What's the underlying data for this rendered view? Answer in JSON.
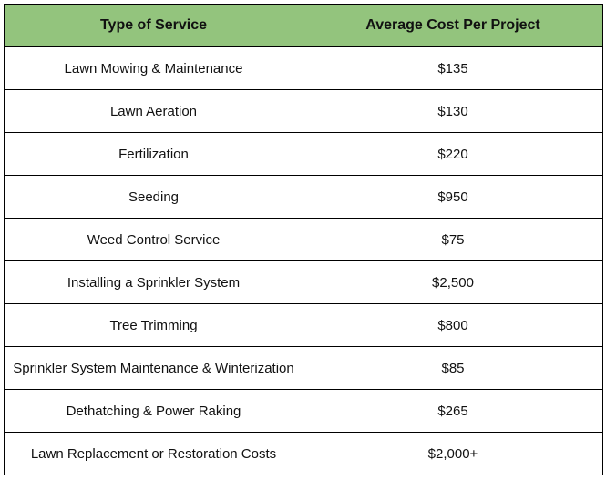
{
  "table": {
    "headers": [
      "Type of Service",
      "Average Cost Per Project"
    ],
    "header_color": "#93c47d",
    "rows": [
      [
        "Lawn Mowing & Maintenance",
        "$135"
      ],
      [
        "Lawn Aeration",
        "$130"
      ],
      [
        "Fertilization",
        "$220"
      ],
      [
        "Seeding",
        "$950"
      ],
      [
        "Weed Control Service",
        "$75"
      ],
      [
        "Installing a Sprinkler System",
        "$2,500"
      ],
      [
        "Tree Trimming",
        "$800"
      ],
      [
        "Sprinkler System Maintenance & Winterization",
        "$85"
      ],
      [
        "Dethatching & Power Raking",
        "$265"
      ],
      [
        "Lawn Replacement or Restoration Costs",
        "$2,000+"
      ]
    ]
  }
}
